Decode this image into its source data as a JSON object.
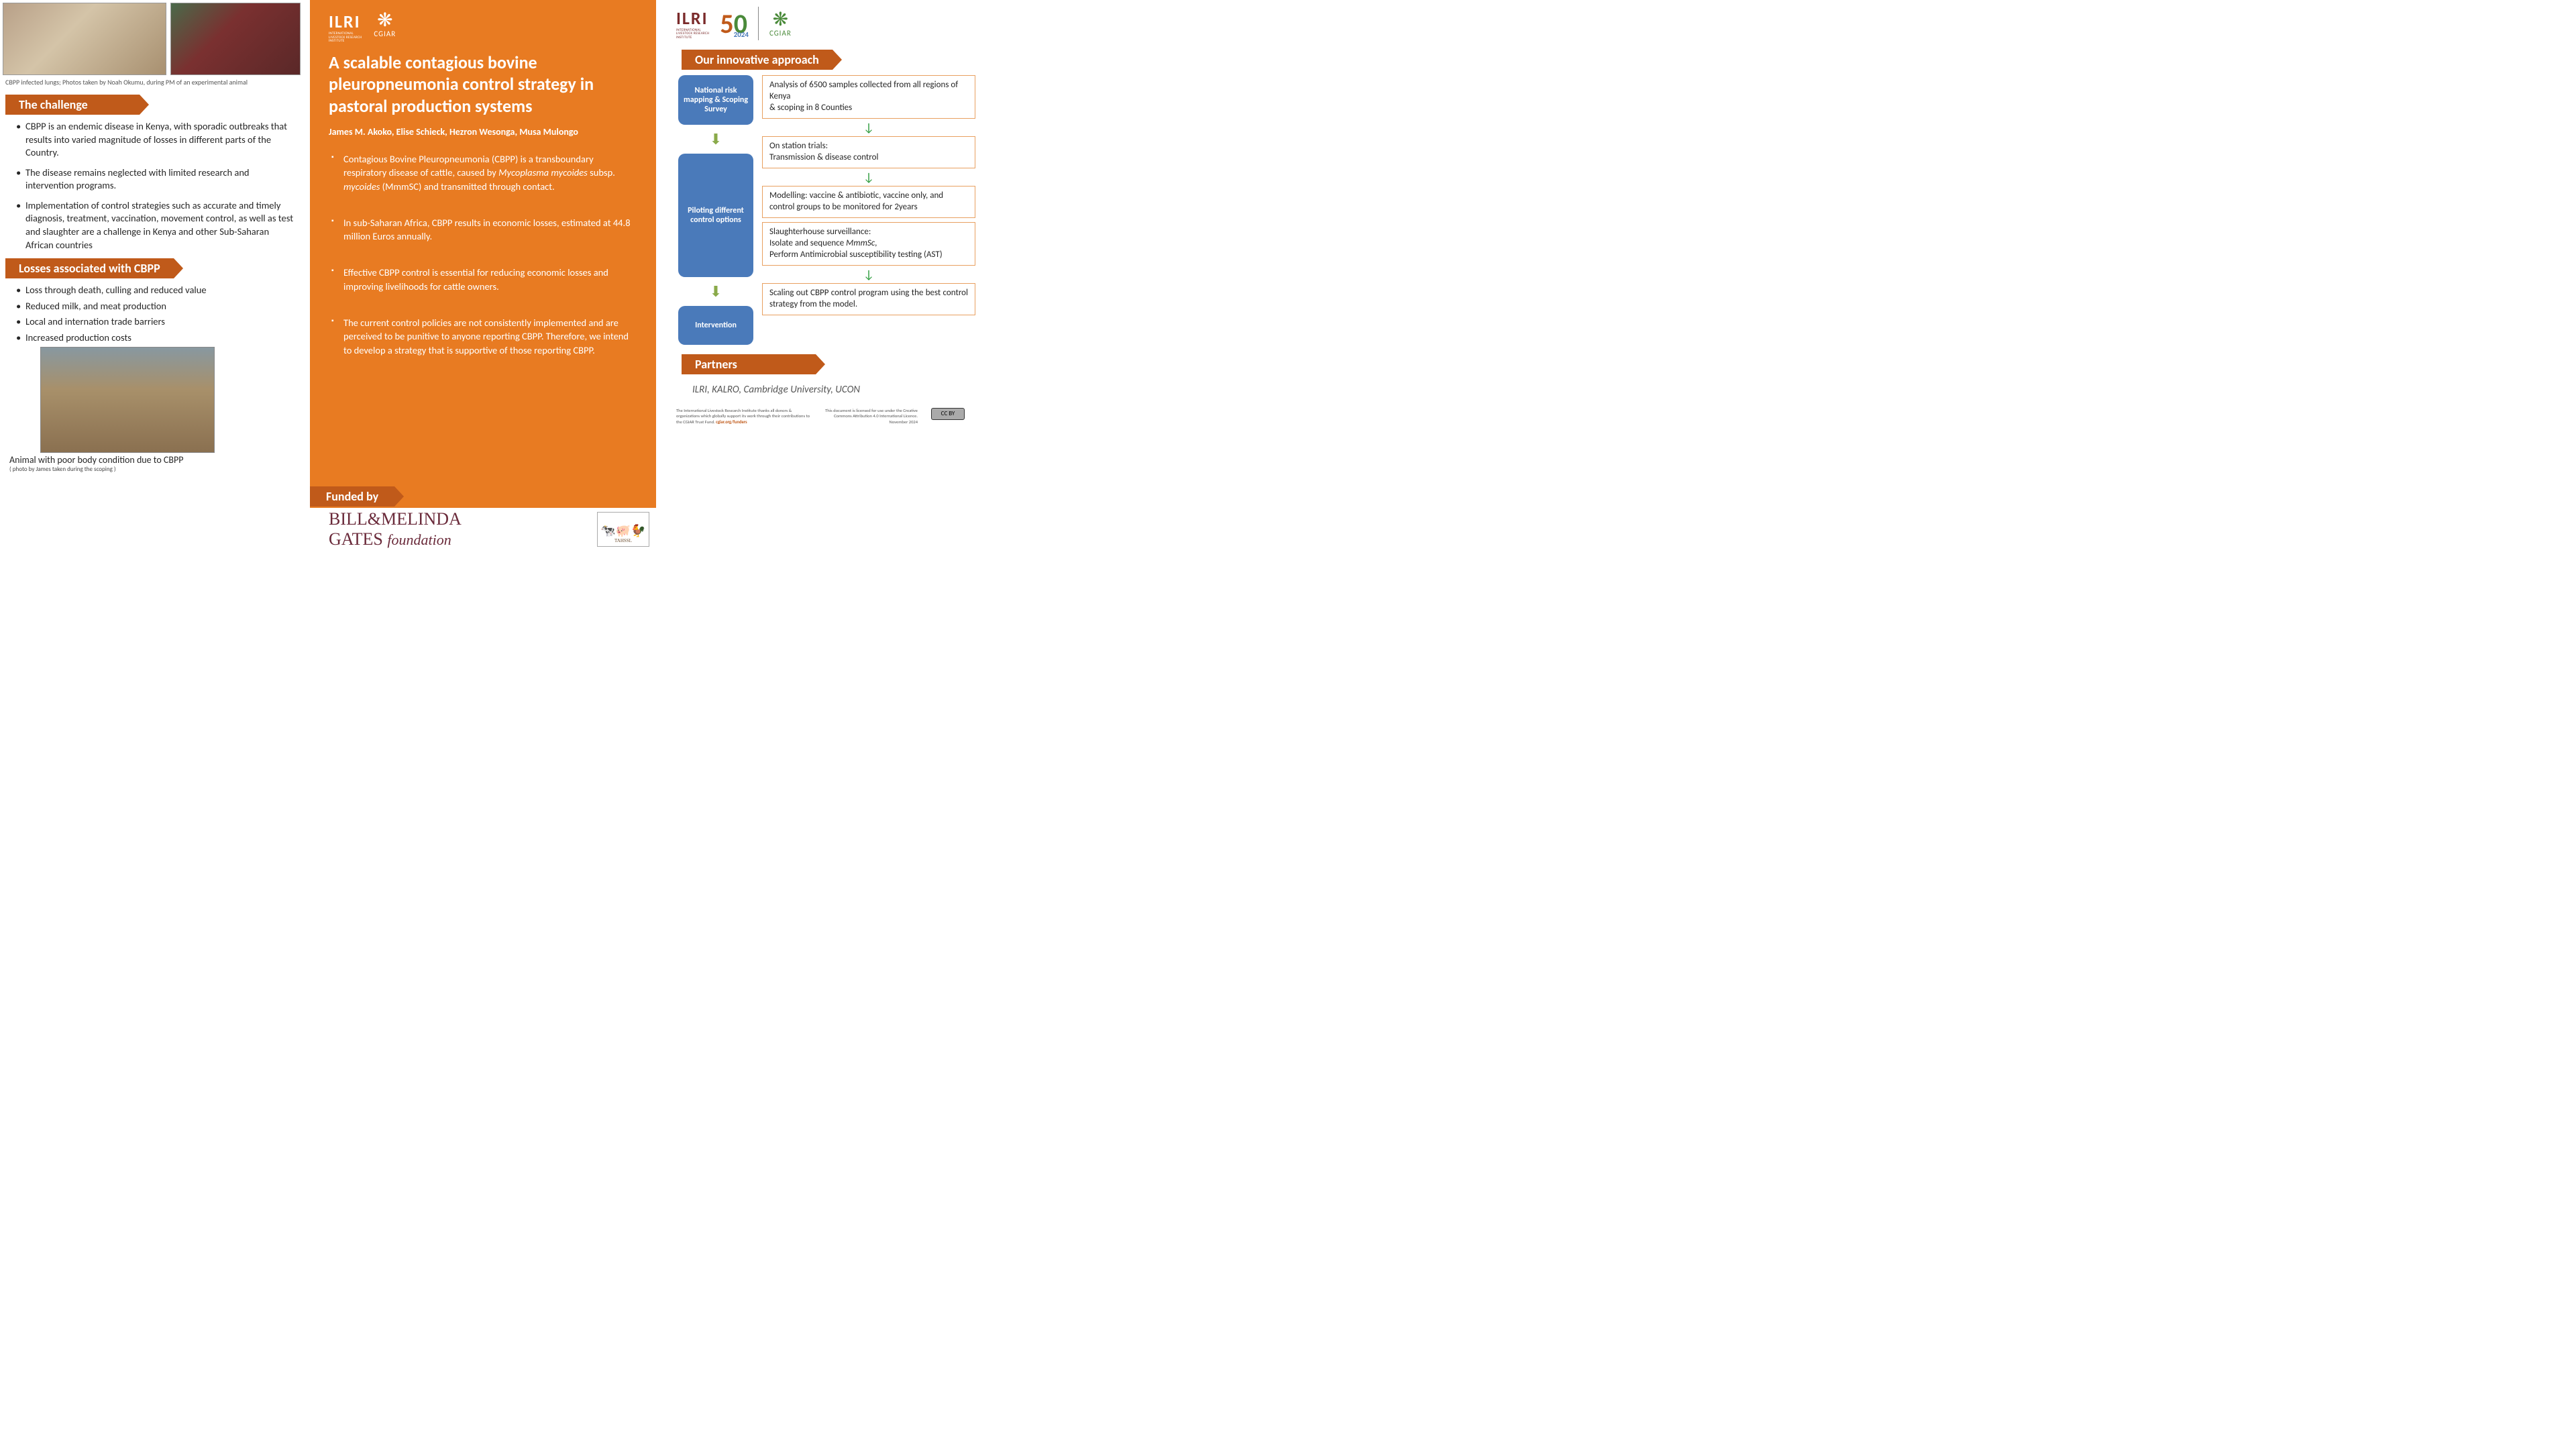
{
  "left": {
    "photo_caption": "CBPP infected lungs; Photos taken by Noah Okumu, during PM of an experimental animal",
    "challenge_header": "The challenge",
    "challenge_bullets": [
      "CBPP is an endemic disease in Kenya, with sporadic outbreaks that results into varied magnitude of losses in different parts of the Country.",
      "The disease remains neglected with limited research and intervention programs.",
      "Implementation of control strategies such as accurate and timely diagnosis, treatment, vaccination, movement control, as well as test and slaughter are a challenge in Kenya and other Sub-Saharan African countries"
    ],
    "losses_header": "Losses associated with CBPP",
    "losses_bullets": [
      "Loss through death, culling and reduced value",
      "Reduced milk, and meat production",
      "Local and internation trade barriers",
      "Increased production  costs"
    ],
    "cow_caption": "Animal with poor body condition due to CBPP",
    "cow_caption_sub": "( photo by James  taken during the scoping )"
  },
  "mid": {
    "ilri_label": "ILRI",
    "ilri_sub": "INTERNATIONAL\nLIVESTOCK RESEARCH\nINSTITUTE",
    "cgiar_label": "CGIAR",
    "title": "A scalable contagious bovine pleuropneumonia control strategy in pastoral production systems",
    "authors": "James M. Akoko, Elise Schieck, Hezron Wesonga, Musa Mulongo",
    "bullets_html": [
      "Contagious Bovine Pleuropneumonia (CBPP) is a transboundary respiratory disease of cattle, caused by <span class='italic'>Mycoplasma mycoides</span> subsp. <span class='italic'>mycoides</span> (MmmSC) and transmitted through contact.",
      "In sub-Saharan Africa, CBPP results in economic losses, estimated at 44.8 million Euros annually.",
      "Effective CBPP control is essential for reducing economic losses and improving livelihoods for cattle owners.",
      "The current control policies are not consistently implemented and are perceived to be punitive to anyone reporting CBPP. Therefore, we intend to develop a strategy that is supportive of those reporting CBPP."
    ],
    "funded_header": "Funded by",
    "gates_text": "BILL&MELINDA",
    "gates_foundation": "GATES foundation",
    "tahssl": "TAHSSL"
  },
  "right": {
    "ilri_label": "ILRI",
    "ilri_sub": "INTERNATIONAL\nLIVESTOCK RESEARCH\nINSTITUTE",
    "year_2024": "2024",
    "cgiar_label": "CGIAR",
    "approach_header": "Our innovative approach",
    "flow_nodes": [
      "National risk mapping & Scoping Survey",
      "Piloting different control options",
      "Intervention"
    ],
    "detail_boxes": [
      "Analysis of 6500 samples collected from all regions of Kenya\n& scoping in 8 Counties",
      "On station trials:\nTransmission & disease control",
      "Modelling: vaccine & antibiotic, vaccine only, and control groups to be monitored for 2years",
      "Slaughterhouse surveillance:\nIsolate and sequence MmmSc,\nPerform Antimicrobial susceptibility testing (AST)",
      "Scaling out CBPP control program using the best control strategy from the model."
    ],
    "partners_header": "Partners",
    "partners_text": "ILRI, KALRO, Cambridge University, UCON",
    "footer_thanks": "The International Livestock Research Institute thanks all donors & organizations which globally support its work through their contributions to the CGIAR Trust Fund.",
    "footer_funders_link": "cgiar.org/funders",
    "footer_license": "This document is licensed for use under the Creative Commons Attribution 4.0 International Licence. November 2024",
    "cc_label": "CC BY"
  },
  "colors": {
    "orange_bg": "#e87b22",
    "header_rust": "#c05a1a",
    "blue_node": "#4a7aba",
    "green_arrow": "#2a9a3a",
    "ilri_maroon": "#7a2a2a",
    "cgiar_green": "#4a8a3a"
  }
}
